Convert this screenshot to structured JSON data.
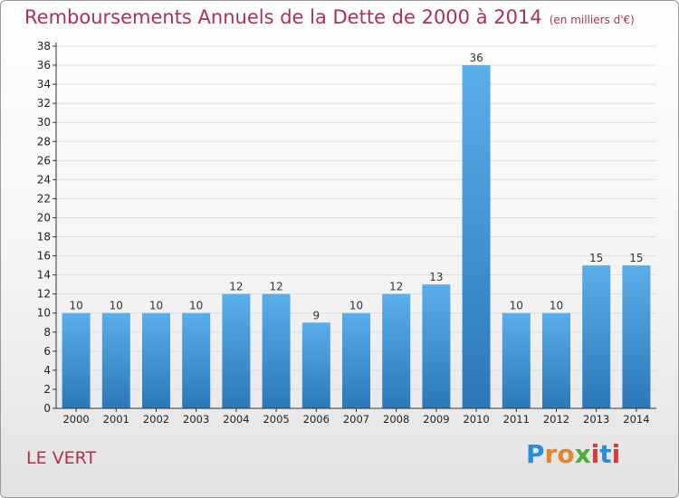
{
  "header": {
    "title": "Remboursements Annuels de la Dette de 2000 à 2014",
    "unit": "(en milliers d'€)"
  },
  "footer": {
    "commune": "LE VERT",
    "logo_letters": [
      "P",
      "r",
      "o",
      "x",
      "i",
      "t",
      "i"
    ],
    "logo_colors": [
      "#2a8fd6",
      "#e2862a",
      "#e2862a",
      "#4cae3c",
      "#d83a3a",
      "#2a8fd6",
      "#d83a3a"
    ]
  },
  "colors": {
    "bar_top": "#5aaeea",
    "bar_bottom": "#2b78b8",
    "axis": "#333333",
    "grid": "#dddddd",
    "title": "#b0304f"
  },
  "chart_data": {
    "type": "bar",
    "title": "Remboursements Annuels de la Dette de 2000 à 2014",
    "xlabel": "",
    "ylabel": "",
    "ylim": [
      0,
      38
    ],
    "ytick_step": 2,
    "grid": true,
    "categories": [
      "2000",
      "2001",
      "2002",
      "2003",
      "2004",
      "2005",
      "2006",
      "2007",
      "2008",
      "2009",
      "2010",
      "2011",
      "2012",
      "2013",
      "2014"
    ],
    "values": [
      10,
      10,
      10,
      10,
      12,
      12,
      9,
      10,
      12,
      13,
      36,
      10,
      10,
      15,
      15
    ],
    "data_labels": [
      "10",
      "10",
      "10",
      "10",
      "12",
      "12",
      "9",
      "10",
      "12",
      "13",
      "36",
      "10",
      "10",
      "15",
      "15"
    ]
  }
}
